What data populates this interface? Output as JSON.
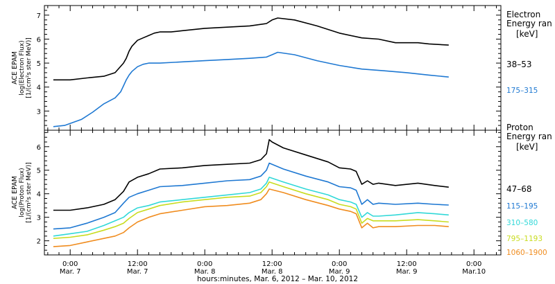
{
  "chart_data": [
    {
      "type": "line",
      "panel": "electron",
      "ylabel_lines": [
        "ACE EPAM",
        "log(Electron Flux)",
        "[1/(cm²s ster MeV)]"
      ],
      "legend_title_lines": [
        "Electron",
        "Energy ran",
        "[keV]"
      ],
      "ylim": [
        2.2,
        7.4
      ],
      "y_ticks": [
        3,
        4,
        5,
        6,
        7
      ],
      "series": [
        {
          "name": "38–53",
          "color": "#000000",
          "points": [
            [
              -3,
              4.3
            ],
            [
              0,
              4.3
            ],
            [
              3,
              4.38
            ],
            [
              6,
              4.45
            ],
            [
              8,
              4.6
            ],
            [
              9.5,
              5.0
            ],
            [
              10,
              5.2
            ],
            [
              10.5,
              5.5
            ],
            [
              11,
              5.7
            ],
            [
              12,
              5.95
            ],
            [
              13,
              6.05
            ],
            [
              14,
              6.15
            ],
            [
              15,
              6.25
            ],
            [
              16,
              6.3
            ],
            [
              18,
              6.3
            ],
            [
              20,
              6.35
            ],
            [
              24,
              6.45
            ],
            [
              28,
              6.5
            ],
            [
              32,
              6.55
            ],
            [
              35,
              6.65
            ],
            [
              36,
              6.8
            ],
            [
              37,
              6.88
            ],
            [
              40,
              6.8
            ],
            [
              44,
              6.55
            ],
            [
              48,
              6.25
            ],
            [
              52,
              6.05
            ],
            [
              55,
              6.0
            ],
            [
              58,
              5.85
            ],
            [
              62,
              5.85
            ],
            [
              64,
              5.8
            ],
            [
              67.5,
              5.75
            ]
          ]
        },
        {
          "name": "175–315",
          "color": "#1e78d2",
          "points": [
            [
              -3,
              2.35
            ],
            [
              -1,
              2.4
            ],
            [
              2,
              2.65
            ],
            [
              4,
              2.95
            ],
            [
              6,
              3.3
            ],
            [
              8,
              3.55
            ],
            [
              9,
              3.8
            ],
            [
              9.5,
              4.05
            ],
            [
              10,
              4.3
            ],
            [
              10.5,
              4.5
            ],
            [
              11,
              4.65
            ],
            [
              12,
              4.85
            ],
            [
              13,
              4.95
            ],
            [
              14,
              5.0
            ],
            [
              16,
              5.0
            ],
            [
              20,
              5.05
            ],
            [
              24,
              5.1
            ],
            [
              28,
              5.15
            ],
            [
              32,
              5.2
            ],
            [
              35,
              5.25
            ],
            [
              36,
              5.35
            ],
            [
              37,
              5.45
            ],
            [
              40,
              5.35
            ],
            [
              44,
              5.1
            ],
            [
              48,
              4.9
            ],
            [
              52,
              4.75
            ],
            [
              56,
              4.68
            ],
            [
              60,
              4.6
            ],
            [
              64,
              4.5
            ],
            [
              67.5,
              4.42
            ]
          ]
        }
      ]
    },
    {
      "type": "line",
      "panel": "proton",
      "ylabel_lines": [
        "ACE EPAM",
        "log(Proton Flux)",
        "[1/(cm²s ster MeV)]"
      ],
      "legend_title_lines": [
        "Proton",
        "Energy ran",
        "[keV]"
      ],
      "ylim": [
        1.4,
        6.7
      ],
      "y_ticks": [
        2,
        3,
        4,
        5,
        6
      ],
      "series": [
        {
          "name": "47–68",
          "color": "#000000",
          "points": [
            [
              -3,
              3.3
            ],
            [
              0,
              3.3
            ],
            [
              3,
              3.4
            ],
            [
              6,
              3.55
            ],
            [
              8,
              3.75
            ],
            [
              9.5,
              4.1
            ],
            [
              10.5,
              4.5
            ],
            [
              12,
              4.7
            ],
            [
              14,
              4.85
            ],
            [
              16,
              5.05
            ],
            [
              20,
              5.1
            ],
            [
              24,
              5.2
            ],
            [
              28,
              5.25
            ],
            [
              32,
              5.3
            ],
            [
              34,
              5.45
            ],
            [
              35,
              5.7
            ],
            [
              35.5,
              6.3
            ],
            [
              36,
              6.2
            ],
            [
              38,
              5.95
            ],
            [
              42,
              5.65
            ],
            [
              46,
              5.35
            ],
            [
              48,
              5.1
            ],
            [
              50,
              5.05
            ],
            [
              51,
              4.95
            ],
            [
              52,
              4.4
            ],
            [
              53,
              4.55
            ],
            [
              54,
              4.4
            ],
            [
              55,
              4.45
            ],
            [
              58,
              4.35
            ],
            [
              62,
              4.45
            ],
            [
              65,
              4.35
            ],
            [
              67.5,
              4.28
            ]
          ]
        },
        {
          "name": "115–195",
          "color": "#1e78d2",
          "points": [
            [
              -3,
              2.5
            ],
            [
              0,
              2.55
            ],
            [
              3,
              2.75
            ],
            [
              6,
              3.0
            ],
            [
              8,
              3.2
            ],
            [
              9.5,
              3.6
            ],
            [
              10.5,
              3.85
            ],
            [
              12,
              4.0
            ],
            [
              14,
              4.15
            ],
            [
              16,
              4.3
            ],
            [
              20,
              4.35
            ],
            [
              24,
              4.45
            ],
            [
              28,
              4.55
            ],
            [
              32,
              4.6
            ],
            [
              34,
              4.75
            ],
            [
              35,
              5.0
            ],
            [
              35.5,
              5.3
            ],
            [
              38,
              5.05
            ],
            [
              42,
              4.75
            ],
            [
              46,
              4.5
            ],
            [
              48,
              4.3
            ],
            [
              50,
              4.25
            ],
            [
              51,
              4.15
            ],
            [
              52,
              3.55
            ],
            [
              53,
              3.75
            ],
            [
              54,
              3.55
            ],
            [
              55,
              3.6
            ],
            [
              58,
              3.55
            ],
            [
              62,
              3.6
            ],
            [
              65,
              3.55
            ],
            [
              67.5,
              3.52
            ]
          ]
        },
        {
          "name": "310–580",
          "color": "#30d8d8",
          "points": [
            [
              -3,
              2.2
            ],
            [
              0,
              2.3
            ],
            [
              3,
              2.4
            ],
            [
              6,
              2.65
            ],
            [
              8,
              2.85
            ],
            [
              9.5,
              3.0
            ],
            [
              10.5,
              3.2
            ],
            [
              12,
              3.4
            ],
            [
              14,
              3.5
            ],
            [
              16,
              3.65
            ],
            [
              20,
              3.75
            ],
            [
              24,
              3.85
            ],
            [
              28,
              3.95
            ],
            [
              32,
              4.05
            ],
            [
              34,
              4.2
            ],
            [
              35,
              4.45
            ],
            [
              35.5,
              4.7
            ],
            [
              38,
              4.5
            ],
            [
              42,
              4.2
            ],
            [
              46,
              3.95
            ],
            [
              48,
              3.75
            ],
            [
              50,
              3.65
            ],
            [
              51,
              3.55
            ],
            [
              52,
              3.0
            ],
            [
              53,
              3.2
            ],
            [
              54,
              3.05
            ],
            [
              55,
              3.05
            ],
            [
              58,
              3.1
            ],
            [
              62,
              3.2
            ],
            [
              65,
              3.15
            ],
            [
              67.5,
              3.1
            ]
          ]
        },
        {
          "name": "795–1193",
          "color": "#c8dc1e",
          "points": [
            [
              -3,
              2.1
            ],
            [
              0,
              2.15
            ],
            [
              3,
              2.25
            ],
            [
              6,
              2.45
            ],
            [
              8,
              2.6
            ],
            [
              9.5,
              2.75
            ],
            [
              10.5,
              2.95
            ],
            [
              12,
              3.2
            ],
            [
              14,
              3.35
            ],
            [
              16,
              3.5
            ],
            [
              20,
              3.65
            ],
            [
              24,
              3.75
            ],
            [
              28,
              3.85
            ],
            [
              32,
              3.9
            ],
            [
              34,
              4.05
            ],
            [
              35,
              4.3
            ],
            [
              35.5,
              4.5
            ],
            [
              38,
              4.3
            ],
            [
              42,
              4.0
            ],
            [
              46,
              3.75
            ],
            [
              48,
              3.55
            ],
            [
              50,
              3.45
            ],
            [
              51,
              3.35
            ],
            [
              52,
              2.75
            ],
            [
              53,
              2.95
            ],
            [
              54,
              2.85
            ],
            [
              55,
              2.85
            ],
            [
              58,
              2.85
            ],
            [
              62,
              2.9
            ],
            [
              65,
              2.85
            ],
            [
              67.5,
              2.8
            ]
          ]
        },
        {
          "name": "1060–1900",
          "color": "#f08c1e",
          "points": [
            [
              -3,
              1.75
            ],
            [
              0,
              1.8
            ],
            [
              3,
              1.95
            ],
            [
              6,
              2.1
            ],
            [
              8,
              2.2
            ],
            [
              9.5,
              2.35
            ],
            [
              10.5,
              2.55
            ],
            [
              12,
              2.8
            ],
            [
              14,
              3.0
            ],
            [
              16,
              3.15
            ],
            [
              20,
              3.3
            ],
            [
              24,
              3.45
            ],
            [
              28,
              3.5
            ],
            [
              32,
              3.6
            ],
            [
              34,
              3.75
            ],
            [
              35,
              4.0
            ],
            [
              35.5,
              4.2
            ],
            [
              38,
              4.05
            ],
            [
              42,
              3.75
            ],
            [
              46,
              3.5
            ],
            [
              48,
              3.35
            ],
            [
              50,
              3.25
            ],
            [
              51,
              3.15
            ],
            [
              52,
              2.55
            ],
            [
              53,
              2.75
            ],
            [
              54,
              2.55
            ],
            [
              55,
              2.6
            ],
            [
              58,
              2.6
            ],
            [
              62,
              2.65
            ],
            [
              65,
              2.65
            ],
            [
              67.5,
              2.6
            ]
          ]
        }
      ]
    }
  ],
  "x_axis": {
    "range_hours": [
      -4.6,
      76.8
    ],
    "ticks": [
      {
        "hours": 0,
        "time": "0:00",
        "date": "Mar. 7"
      },
      {
        "hours": 12,
        "time": "12:00",
        "date": "Mar. 7"
      },
      {
        "hours": 24,
        "time": "0:00",
        "date": "Mar. 8"
      },
      {
        "hours": 36,
        "time": "12:00",
        "date": "Mar. 8"
      },
      {
        "hours": 48,
        "time": "0:00",
        "date": "Mar. 9"
      },
      {
        "hours": 60,
        "time": "12:00",
        "date": "Mar. 9"
      },
      {
        "hours": 72,
        "time": "0:00",
        "date": "Mar.10"
      }
    ],
    "label": "hours:minutes, Mar.  6, 2012 – Mar. 10, 2012"
  }
}
